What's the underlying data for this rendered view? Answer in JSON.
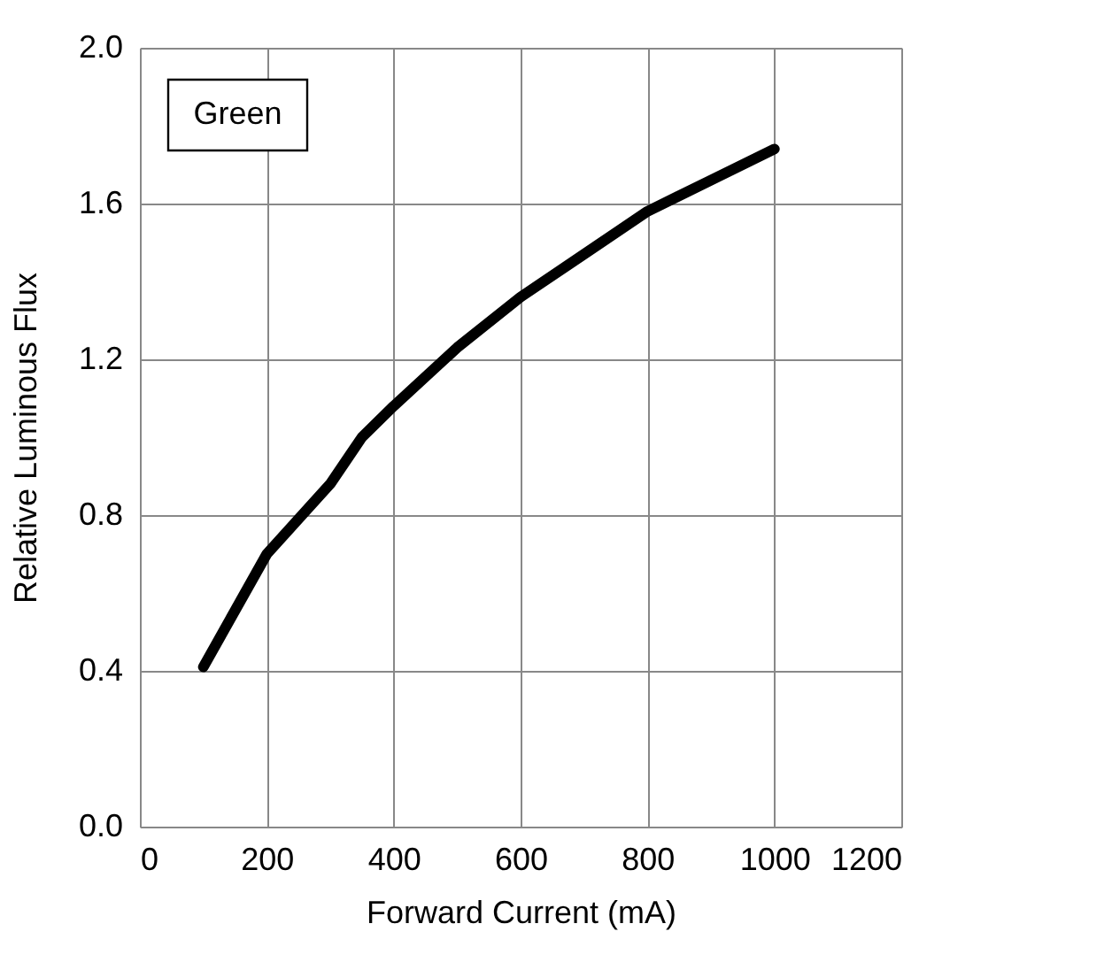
{
  "chart_data": {
    "type": "line",
    "xlabel": "Forward Current (mA)",
    "ylabel": "Relative Luminous Flux",
    "annotations": [
      "Green"
    ],
    "x": [
      100,
      200,
      300,
      350,
      400,
      500,
      600,
      700,
      800,
      900,
      1000
    ],
    "series": [
      {
        "color": "#000000",
        "values": [
          0.41,
          0.7,
          0.88,
          1.0,
          1.08,
          1.23,
          1.36,
          1.47,
          1.58,
          1.66,
          1.74
        ]
      }
    ],
    "xlim": [
      0,
      1200
    ],
    "xticks": [
      0,
      200,
      400,
      600,
      800,
      1000,
      1200
    ],
    "ylim": [
      0.0,
      2.0
    ],
    "yticks": [
      {
        "value": 0.0,
        "label": "0.0"
      },
      {
        "value": 0.4,
        "label": "0.4"
      },
      {
        "value": 0.8,
        "label": "0.8"
      },
      {
        "value": 1.2,
        "label": "1.2"
      },
      {
        "value": 1.6,
        "label": "1.6"
      },
      {
        "value": 2.0,
        "label": "2.0"
      }
    ],
    "grid": true,
    "marker": "none",
    "line_style": "solid"
  }
}
